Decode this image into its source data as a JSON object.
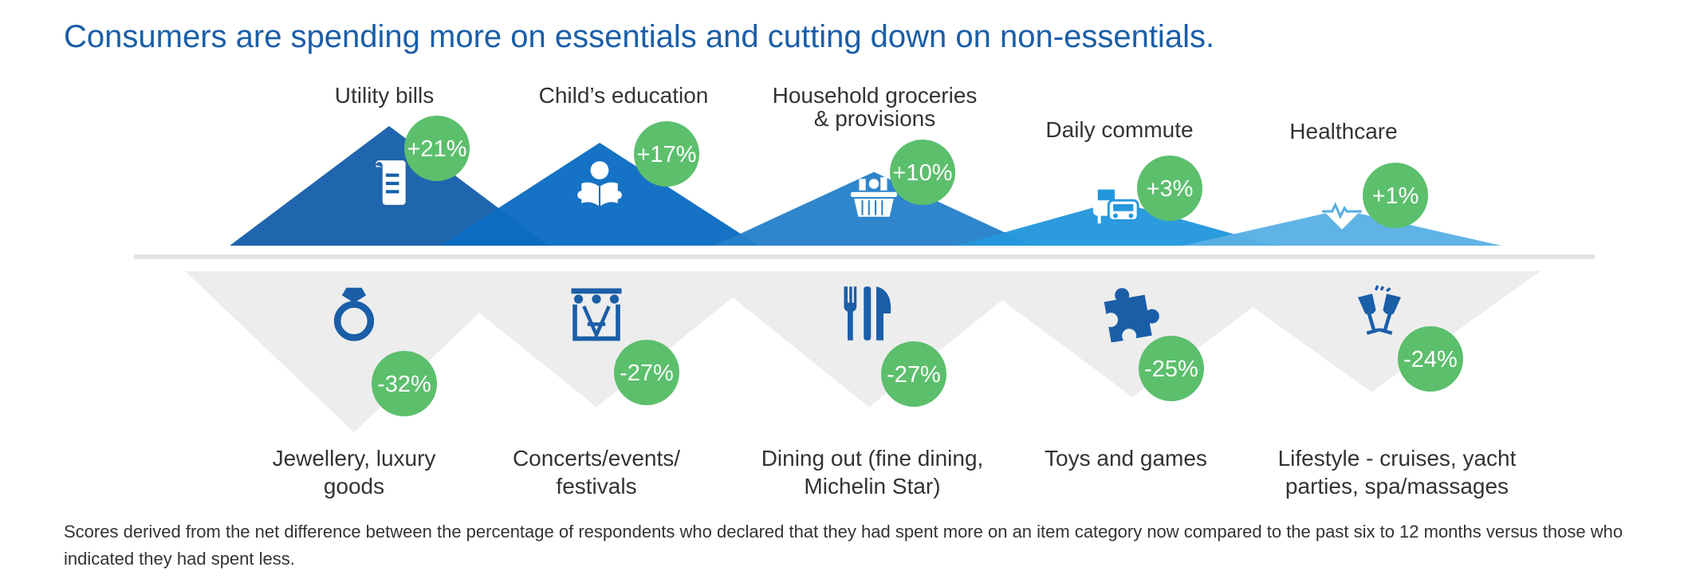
{
  "title": "Consumers are spending more on essentials and cutting down on non-essentials.",
  "footnote": "Scores derived from the net difference between the percentage of respondents who declared that they had spent more on an item category now compared to the past six to 12 months versus those who indicated they had spent less.",
  "colors": {
    "bubble": "#5cbf6c",
    "gray_triangle": "#ececec",
    "divider": "#e3e3e3",
    "icon_blue": "#1a5ea8"
  },
  "chart_data": {
    "type": "bar",
    "series": [
      {
        "categories": [
          "Utility bills",
          "Child’s education",
          "Household groceries & provisions",
          "Daily commute",
          "Healthcare"
        ],
        "labels": [
          [
            "Utility bills"
          ],
          [
            "Child’s education"
          ],
          [
            "Household groceries",
            "& provisions"
          ],
          [
            "Daily commute"
          ],
          [
            "Healthcare"
          ]
        ],
        "values": [
          21,
          17,
          10,
          3,
          1
        ],
        "value_labels": [
          "+21%",
          "+17%",
          "+10%",
          "+3%",
          "+1%"
        ],
        "icons": [
          "bill-icon",
          "reading-child-icon",
          "grocery-basket-icon",
          "bus-car-icon",
          "heartbeat-icon"
        ],
        "colors": [
          "#1660ab",
          "#0b6cc2",
          "#2681ca",
          "#2397dd",
          "#5ab0e4"
        ]
      },
      {
        "categories": [
          "Jewellery, luxury goods",
          "Concerts/events/ festivals",
          "Dining out (fine dining, Michelin Star)",
          "Toys and games",
          "Lifestyle - cruises, yacht parties, spa/massages"
        ],
        "labels": [
          [
            "Jewellery, luxury",
            "goods"
          ],
          [
            "Concerts/events/",
            "festivals"
          ],
          [
            "Dining out (fine dining,",
            "Michelin Star)"
          ],
          [
            "Toys and games"
          ],
          [
            "Lifestyle - cruises, yacht",
            "parties, spa/massages"
          ]
        ],
        "values": [
          -32,
          -27,
          -27,
          -25,
          -24
        ],
        "value_labels": [
          "-32%",
          "-27%",
          "-27%",
          "-25%",
          "-24%"
        ],
        "icons": [
          "ring-icon",
          "stage-icon",
          "cutlery-icon",
          "puzzle-icon",
          "champagne-toast-icon"
        ]
      }
    ]
  }
}
